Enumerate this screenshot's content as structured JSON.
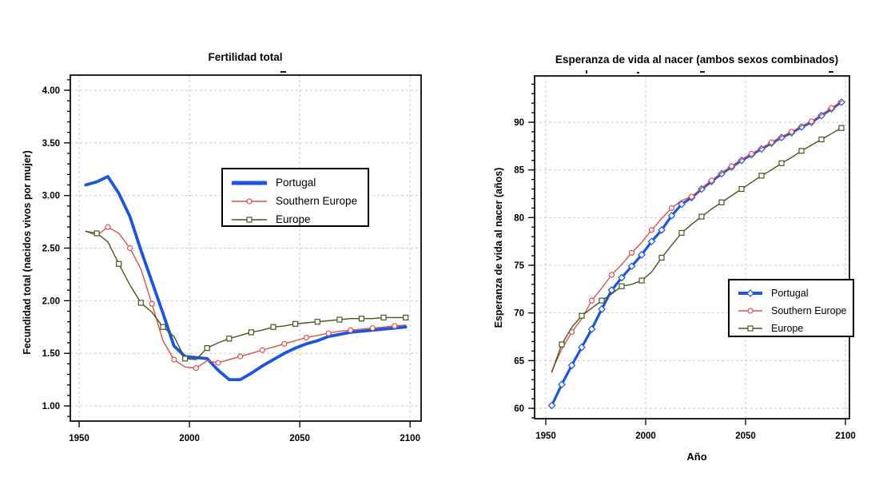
{
  "page": {
    "background": "#ffffff"
  },
  "chart_data": [
    {
      "type": "line",
      "title": "Fertilidad total",
      "xlabel": "",
      "ylabel": "Fecundidad total (nacidos vivos por mujer)",
      "xlim": [
        1946,
        2105
      ],
      "ylim": [
        0.856,
        4.144
      ],
      "xticks": [
        1950,
        2000,
        2050,
        2100
      ],
      "xtick_labels": [
        "1950",
        "2000",
        "2050",
        "2100"
      ],
      "yticks": [
        1.0,
        1.5,
        2.0,
        2.5,
        3.0,
        3.5,
        4.0
      ],
      "ytick_labels": [
        "1.00",
        "1.50",
        "2.00",
        "2.50",
        "3.00",
        "3.50",
        "4.00"
      ],
      "y_minor_step": 0.1,
      "grid": true,
      "legend_position": "inside-center",
      "x": [
        1953,
        1958,
        1963,
        1968,
        1973,
        1978,
        1983,
        1988,
        1993,
        1998,
        2003,
        2008,
        2013,
        2018,
        2023,
        2028,
        2033,
        2038,
        2043,
        2048,
        2053,
        2058,
        2063,
        2068,
        2073,
        2078,
        2083,
        2088,
        2093,
        2098
      ],
      "series": [
        {
          "name": "Portugal",
          "color": "#1b56dd",
          "line_width": 3.8,
          "marker": "none",
          "marker_every": 1,
          "marker_offset": 0,
          "values": [
            3.1,
            3.13,
            3.18,
            3.02,
            2.8,
            2.48,
            2.18,
            1.88,
            1.57,
            1.47,
            1.46,
            1.45,
            1.34,
            1.25,
            1.25,
            1.31,
            1.38,
            1.44,
            1.5,
            1.55,
            1.59,
            1.62,
            1.66,
            1.68,
            1.7,
            1.71,
            1.72,
            1.73,
            1.74,
            1.75
          ]
        },
        {
          "name": "Southern Europe",
          "color": "#d9534b",
          "line_width": 1.4,
          "marker": "circle",
          "marker_every": 2,
          "marker_offset": 2,
          "values": [
            2.66,
            2.62,
            2.7,
            2.64,
            2.5,
            2.3,
            1.97,
            1.62,
            1.44,
            1.37,
            1.36,
            1.43,
            1.41,
            1.44,
            1.47,
            1.5,
            1.53,
            1.56,
            1.59,
            1.62,
            1.65,
            1.67,
            1.69,
            1.71,
            1.72,
            1.73,
            1.74,
            1.75,
            1.76,
            1.77
          ]
        },
        {
          "name": "Europe",
          "color": "#44591d",
          "line_width": 1.4,
          "marker": "square",
          "marker_every": 2,
          "marker_offset": 1,
          "values": [
            2.66,
            2.64,
            2.56,
            2.35,
            2.15,
            1.98,
            1.89,
            1.75,
            1.66,
            1.45,
            1.44,
            1.55,
            1.6,
            1.64,
            1.67,
            1.7,
            1.72,
            1.75,
            1.76,
            1.78,
            1.79,
            1.8,
            1.81,
            1.82,
            1.83,
            1.83,
            1.83,
            1.84,
            1.84,
            1.84
          ]
        }
      ]
    },
    {
      "type": "line",
      "title": "Esperanza de vida al nacer (ambos sexos combinados)",
      "xlabel": "Año",
      "ylabel": "Esperanza de vida al nacer (años)",
      "xlim": [
        1944.4,
        2102
      ],
      "ylim": [
        58.91,
        94.86
      ],
      "xticks": [
        1950,
        2000,
        2050,
        2100
      ],
      "xtick_labels": [
        "1950",
        "2000",
        "2050",
        "2100"
      ],
      "yticks": [
        60,
        65,
        70,
        75,
        80,
        85,
        90
      ],
      "ytick_labels": [
        "60",
        "65",
        "70",
        "75",
        "80",
        "85",
        "90"
      ],
      "y_minor_step": 1,
      "grid": true,
      "legend_position": "inside-right",
      "x": [
        1953,
        1958,
        1963,
        1968,
        1973,
        1978,
        1983,
        1988,
        1993,
        1998,
        2003,
        2008,
        2013,
        2018,
        2023,
        2028,
        2033,
        2038,
        2043,
        2048,
        2053,
        2058,
        2063,
        2068,
        2073,
        2078,
        2083,
        2088,
        2093,
        2098
      ],
      "series": [
        {
          "name": "Portugal",
          "color": "#1b56dd",
          "line_width": 3.2,
          "marker": "diamond",
          "marker_every": 1,
          "marker_offset": 0,
          "values": [
            60.3,
            62.5,
            64.5,
            66.4,
            68.3,
            70.4,
            72.4,
            73.7,
            74.9,
            76.1,
            77.5,
            78.7,
            80.2,
            81.4,
            82.1,
            83.0,
            83.8,
            84.6,
            85.3,
            86.0,
            86.6,
            87.2,
            87.8,
            88.4,
            88.9,
            89.5,
            90.0,
            90.7,
            91.4,
            92.1
          ]
        },
        {
          "name": "Southern Europe",
          "color": "#d9534b",
          "line_width": 1.4,
          "marker": "circle",
          "marker_every": 2,
          "marker_offset": 2,
          "values": [
            63.9,
            66.2,
            68.0,
            69.4,
            71.3,
            72.6,
            74.0,
            75.1,
            76.3,
            77.4,
            78.7,
            79.9,
            81.0,
            81.8,
            82.2,
            83.1,
            83.9,
            84.7,
            85.4,
            86.1,
            86.7,
            87.3,
            87.9,
            88.5,
            89.0,
            89.6,
            90.1,
            90.8,
            91.5,
            92.2
          ]
        },
        {
          "name": "Europe",
          "color": "#44591d",
          "line_width": 1.4,
          "marker": "square",
          "marker_every": 2,
          "marker_offset": 1,
          "values": [
            63.8,
            66.7,
            68.5,
            69.7,
            70.5,
            71.3,
            72.0,
            72.8,
            73.0,
            73.4,
            74.3,
            75.8,
            77.1,
            78.4,
            79.3,
            80.1,
            80.9,
            81.6,
            82.3,
            83.0,
            83.7,
            84.4,
            85.0,
            85.7,
            86.3,
            87.0,
            87.6,
            88.2,
            88.8,
            89.4
          ]
        }
      ]
    }
  ]
}
